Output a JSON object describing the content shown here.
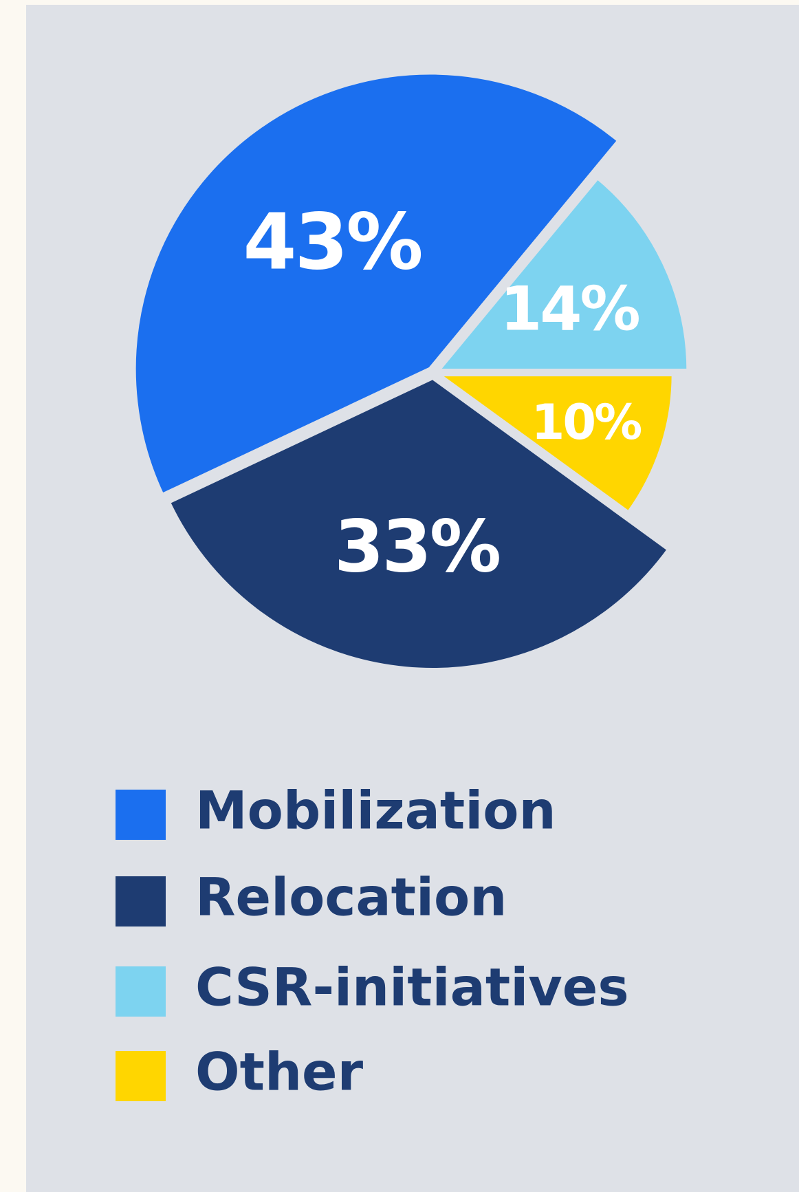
{
  "chart_data": {
    "type": "pie",
    "categories": [
      "Mobilization",
      "Relocation",
      "CSR-initiatives",
      "Other"
    ],
    "values": [
      43,
      33,
      14,
      10
    ],
    "value_labels": [
      "43%",
      "33%",
      "14%",
      "10%"
    ],
    "colors": [
      "#1b6fef",
      "#1e3c72",
      "#7dd3f0",
      "#ffd600"
    ],
    "legend": "bottom"
  }
}
